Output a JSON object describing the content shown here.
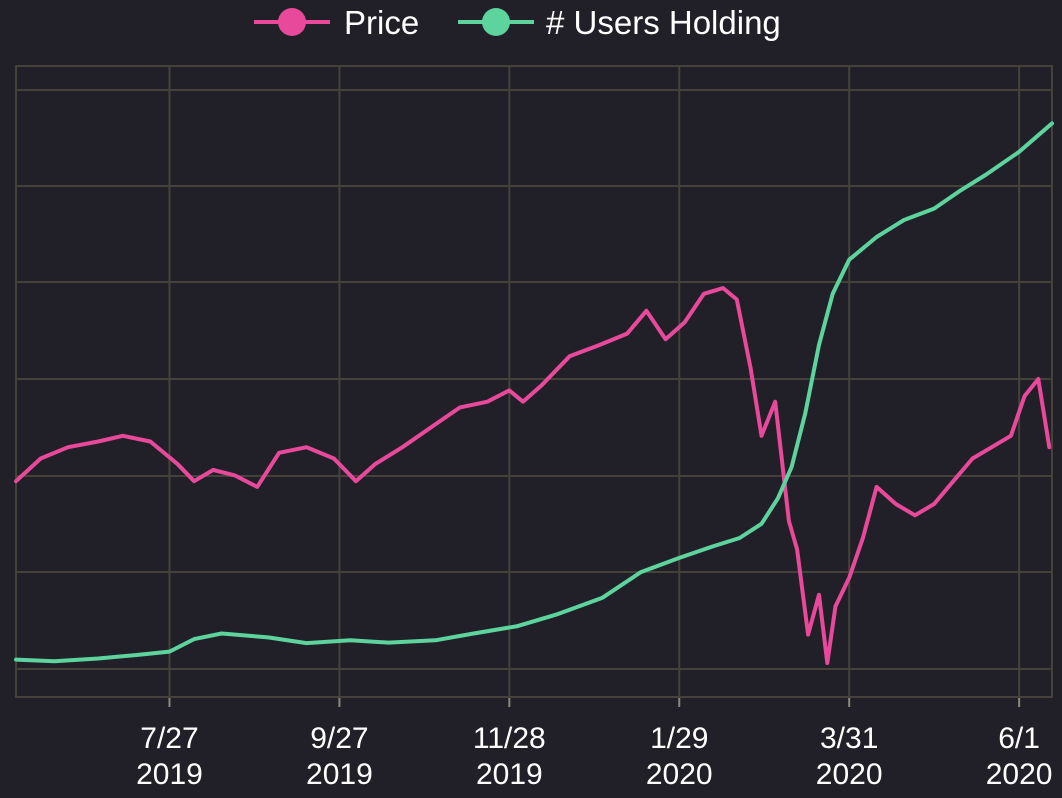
{
  "chart_data": {
    "type": "line",
    "title": "",
    "xlabel": "",
    "ylabel": "",
    "x_ticks": [
      {
        "date": "2019-07-27",
        "line1": "7/27",
        "line2": "2019"
      },
      {
        "date": "2019-09-27",
        "line1": "9/27",
        "line2": "2019"
      },
      {
        "date": "2019-11-28",
        "line1": "11/28",
        "line2": "2019"
      },
      {
        "date": "2020-01-29",
        "line1": "1/29",
        "line2": "2020"
      },
      {
        "date": "2020-03-31",
        "line1": "3/31",
        "line2": "2020"
      },
      {
        "date": "2020-06-01",
        "line1": "6/1",
        "line2": "2020"
      }
    ],
    "xlim": [
      "2019-06-01",
      "2020-06-13"
    ],
    "y_axis_labels_shown": false,
    "grid": true,
    "legend_position": "top-center",
    "series": [
      {
        "name": "Price",
        "color": "#e8499a",
        "x": [
          "2019-06-01",
          "2019-06-10",
          "2019-06-20",
          "2019-07-01",
          "2019-07-10",
          "2019-07-20",
          "2019-07-30",
          "2019-08-05",
          "2019-08-12",
          "2019-08-20",
          "2019-08-28",
          "2019-09-05",
          "2019-09-15",
          "2019-09-25",
          "2019-10-03",
          "2019-10-10",
          "2019-10-20",
          "2019-11-01",
          "2019-11-10",
          "2019-11-20",
          "2019-11-28",
          "2019-12-03",
          "2019-12-10",
          "2019-12-20",
          "2019-12-31",
          "2020-01-10",
          "2020-01-17",
          "2020-01-24",
          "2020-01-31",
          "2020-02-07",
          "2020-02-14",
          "2020-02-19",
          "2020-02-24",
          "2020-02-28",
          "2020-03-04",
          "2020-03-09",
          "2020-03-12",
          "2020-03-16",
          "2020-03-20",
          "2020-03-23",
          "2020-03-26",
          "2020-03-31",
          "2020-04-05",
          "2020-04-10",
          "2020-04-17",
          "2020-04-24",
          "2020-05-01",
          "2020-05-08",
          "2020-05-15",
          "2020-05-22",
          "2020-05-29",
          "2020-06-03",
          "2020-06-08",
          "2020-06-10",
          "2020-06-12"
        ],
        "values": [
          0.32,
          0.36,
          0.38,
          0.39,
          0.4,
          0.39,
          0.35,
          0.32,
          0.34,
          0.33,
          0.31,
          0.37,
          0.38,
          0.36,
          0.32,
          0.35,
          0.38,
          0.42,
          0.45,
          0.46,
          0.48,
          0.46,
          0.49,
          0.54,
          0.56,
          0.58,
          0.62,
          0.57,
          0.6,
          0.65,
          0.66,
          0.64,
          0.52,
          0.4,
          0.46,
          0.25,
          0.2,
          0.05,
          0.12,
          0.0,
          0.1,
          0.15,
          0.22,
          0.31,
          0.28,
          0.26,
          0.28,
          0.32,
          0.36,
          0.38,
          0.4,
          0.47,
          0.5,
          0.44,
          0.38
        ]
      },
      {
        "name": "# Users Holding",
        "color": "#5dd39e",
        "x": [
          "2019-06-01",
          "2019-06-15",
          "2019-07-01",
          "2019-07-15",
          "2019-07-27",
          "2019-08-05",
          "2019-08-15",
          "2019-09-01",
          "2019-09-15",
          "2019-10-01",
          "2019-10-15",
          "2019-11-01",
          "2019-11-15",
          "2019-12-01",
          "2019-12-15",
          "2020-01-01",
          "2020-01-15",
          "2020-01-29",
          "2020-02-10",
          "2020-02-20",
          "2020-02-28",
          "2020-03-05",
          "2020-03-10",
          "2020-03-15",
          "2020-03-20",
          "2020-03-25",
          "2020-03-31",
          "2020-04-10",
          "2020-04-20",
          "2020-05-01",
          "2020-05-10",
          "2020-05-20",
          "2020-06-01",
          "2020-06-13"
        ],
        "values": [
          0.006,
          0.003,
          0.008,
          0.014,
          0.02,
          0.042,
          0.052,
          0.045,
          0.035,
          0.04,
          0.036,
          0.04,
          0.052,
          0.065,
          0.085,
          0.115,
          0.16,
          0.185,
          0.205,
          0.22,
          0.245,
          0.29,
          0.345,
          0.44,
          0.56,
          0.65,
          0.71,
          0.75,
          0.78,
          0.8,
          0.83,
          0.86,
          0.9,
          0.95
        ]
      }
    ]
  }
}
